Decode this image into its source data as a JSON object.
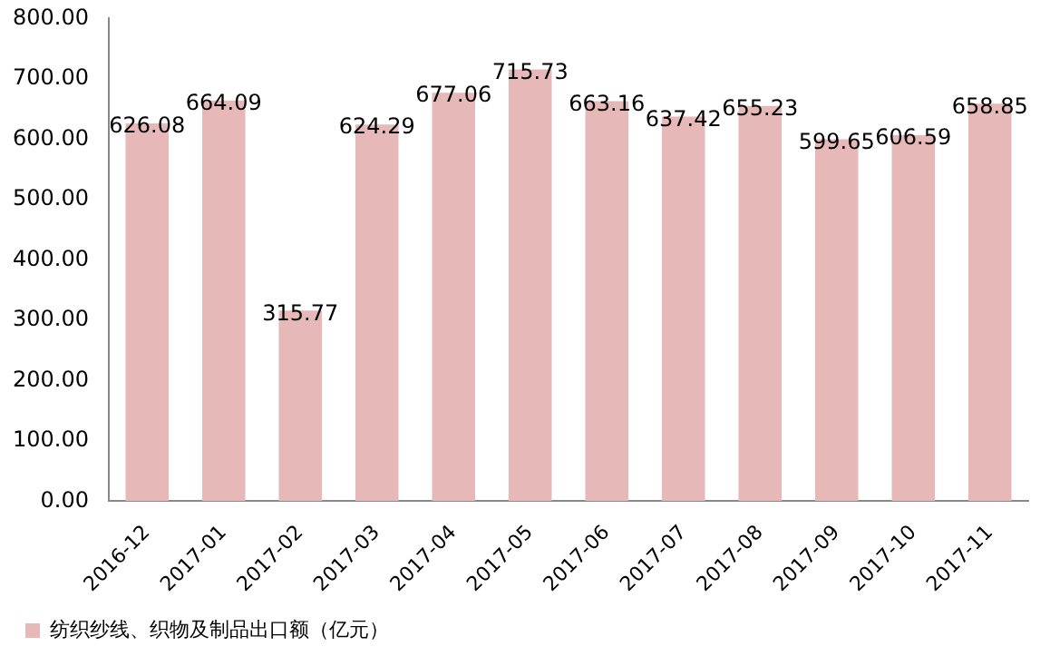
{
  "chart_data": {
    "type": "bar",
    "categories": [
      "2016-12",
      "2017-01",
      "2017-02",
      "2017-03",
      "2017-04",
      "2017-05",
      "2017-06",
      "2017-07",
      "2017-08",
      "2017-09",
      "2017-10",
      "2017-11"
    ],
    "series": [
      {
        "name": "纺织纱线、织物及制品出口额（亿元）",
        "color": "#e6b9b8",
        "values": [
          626.08,
          664.09,
          315.77,
          624.29,
          677.06,
          715.73,
          663.16,
          637.42,
          655.23,
          599.65,
          606.59,
          658.85
        ]
      }
    ],
    "ylim": [
      0,
      800
    ],
    "yticks": [
      {
        "value": 0,
        "label": "0.00"
      },
      {
        "value": 100,
        "label": "100.00"
      },
      {
        "value": 200,
        "label": "200.00"
      },
      {
        "value": 300,
        "label": "300.00"
      },
      {
        "value": 400,
        "label": "400.00"
      },
      {
        "value": 500,
        "label": "500.00"
      },
      {
        "value": 600,
        "label": "600.00"
      },
      {
        "value": 700,
        "label": "700.00"
      },
      {
        "value": 800,
        "label": "800.00"
      }
    ],
    "grid": false,
    "legend": "bottom",
    "data_labels": true
  }
}
